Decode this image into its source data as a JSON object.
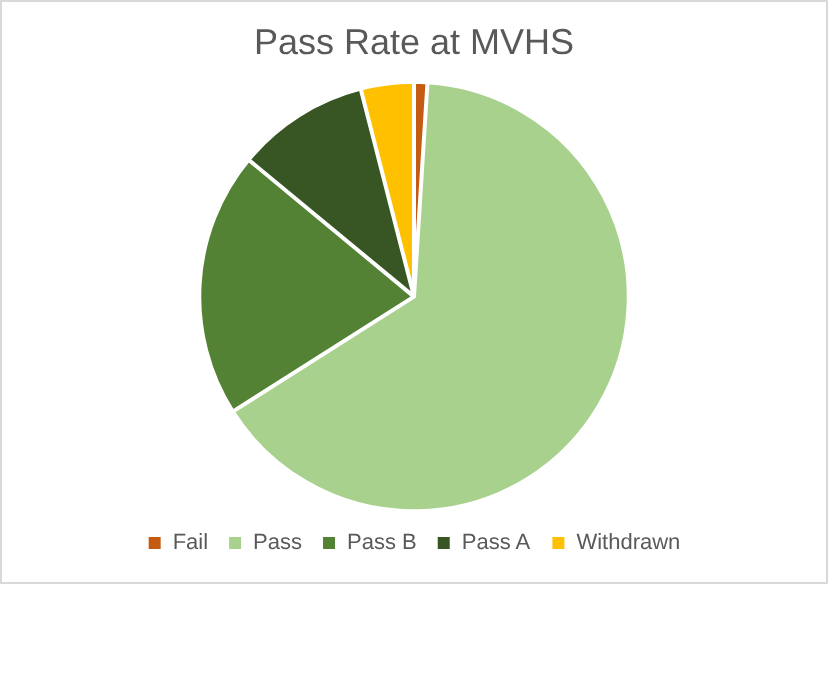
{
  "chart_data": {
    "type": "pie",
    "title": "Pass Rate at MVHS",
    "categories": [
      "Fail",
      "Pass",
      "Pass B",
      "Pass A",
      "Withdrawn"
    ],
    "values": [
      1,
      65,
      20,
      10,
      4
    ],
    "colors": [
      "#c55a11",
      "#a9d18e",
      "#548235",
      "#375623",
      "#ffc000"
    ],
    "legend": "bottom"
  }
}
